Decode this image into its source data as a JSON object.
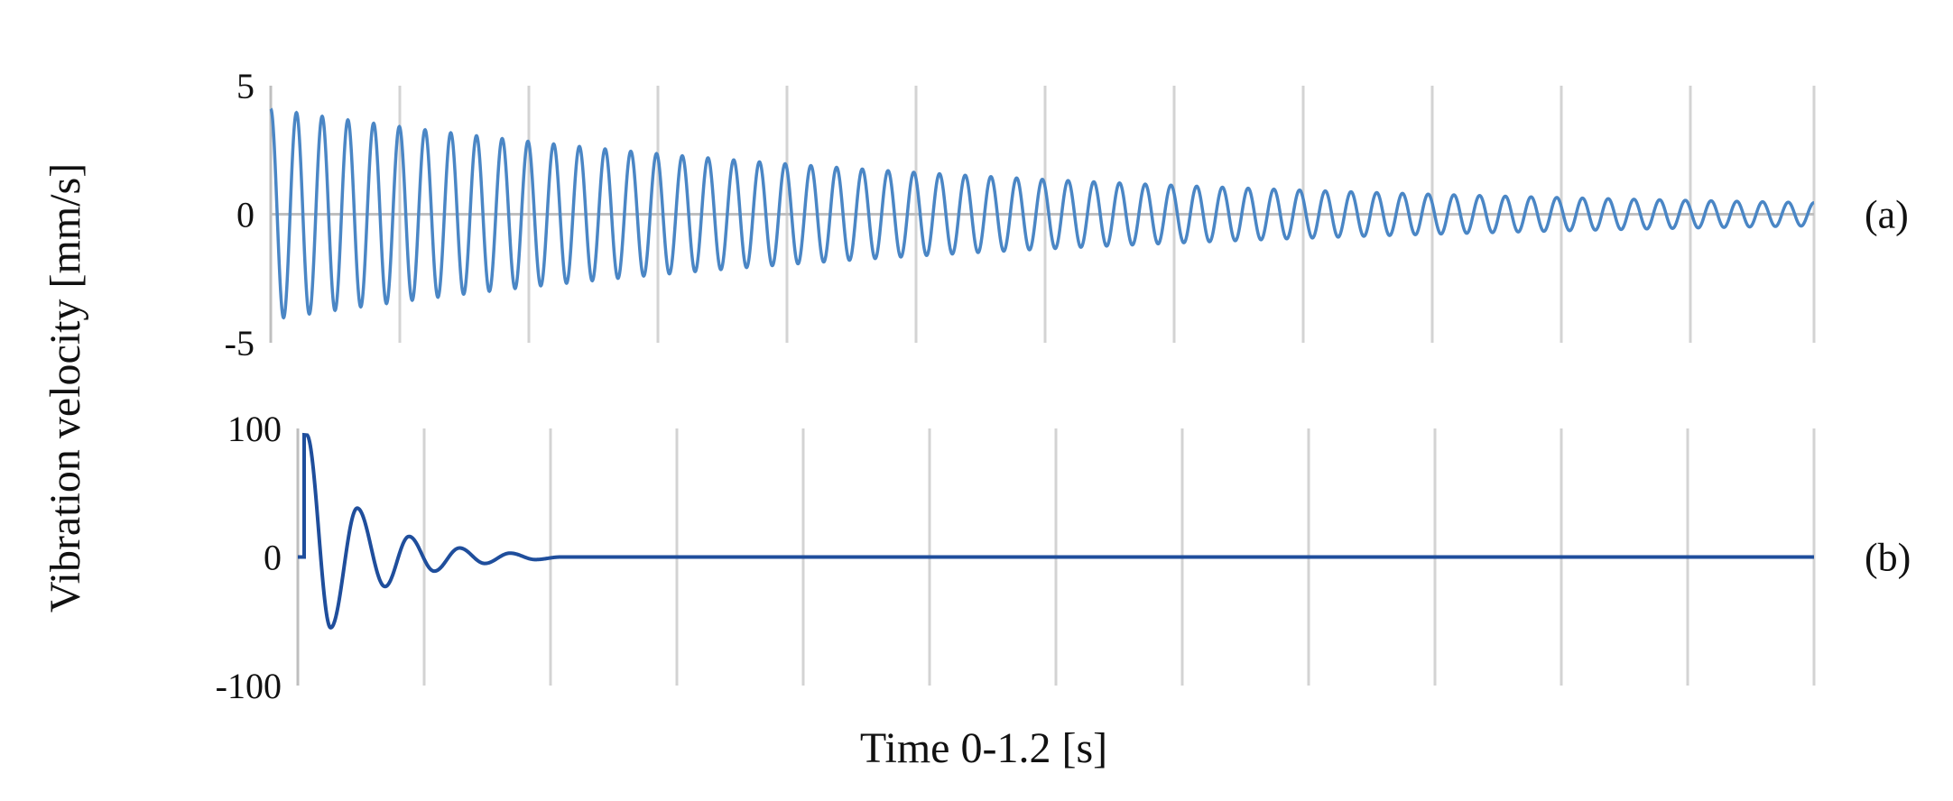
{
  "chart_data": {
    "type": "line",
    "ylabel": "Vibration velocity [mm/s]",
    "xlabel": "Time 0-1.2 [s]",
    "x_range_seconds": [
      0,
      1.2
    ],
    "grid": "vertical",
    "panels": [
      {
        "label": "(a)",
        "ylim": [
          -5,
          5
        ],
        "yticks": [
          {
            "value": 5,
            "label": "5"
          },
          {
            "value": 0,
            "label": "0"
          },
          {
            "value": -5,
            "label": "-5"
          }
        ],
        "line_color": "#4a86c5",
        "signal": {
          "model": "damped_sine",
          "amplitude_start": 4.1,
          "amplitude_end": 0.45,
          "cycles": 60,
          "onset_s": 0.0
        }
      },
      {
        "label": "(b)",
        "ylim": [
          -100,
          100
        ],
        "yticks": [
          {
            "value": 100,
            "label": "100"
          },
          {
            "value": 0,
            "label": "0"
          },
          {
            "value": -100,
            "label": "-100"
          }
        ],
        "line_color": "#1f4e9c",
        "signal": {
          "model": "impulse_damped_sine",
          "onset_s": 0.005,
          "peaks": [
            {
              "t": 0.007,
              "v": 95
            },
            {
              "t": 0.026,
              "v": -55
            },
            {
              "t": 0.047,
              "v": 38
            },
            {
              "t": 0.069,
              "v": -23
            },
            {
              "t": 0.088,
              "v": 16
            },
            {
              "t": 0.108,
              "v": -11
            },
            {
              "t": 0.128,
              "v": 7
            },
            {
              "t": 0.148,
              "v": -5
            },
            {
              "t": 0.168,
              "v": 3
            },
            {
              "t": 0.188,
              "v": -2
            }
          ]
        }
      }
    ]
  }
}
